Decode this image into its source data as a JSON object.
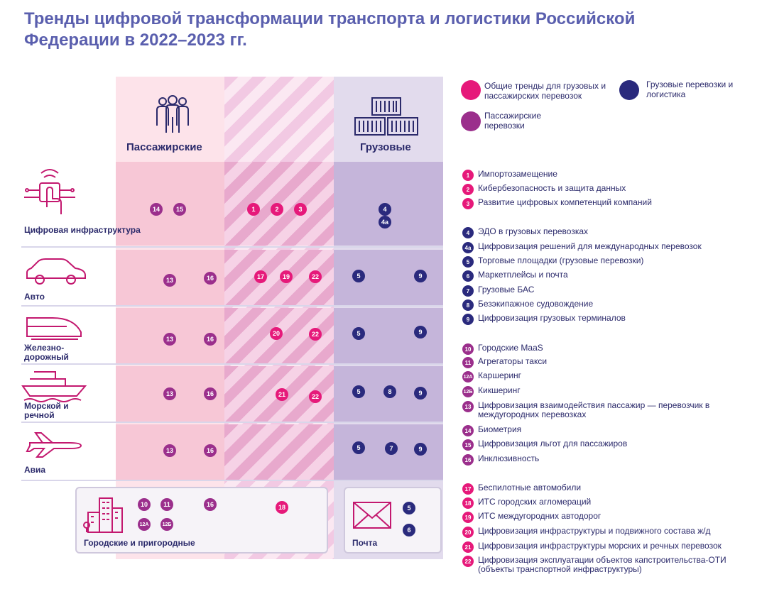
{
  "title": "Тренды цифровой трансформации транспорта и логистики Российской Федерации в 2022–2023 гг.",
  "columns": {
    "passenger": "Пассажирские",
    "freight": "Грузовые"
  },
  "legend_categories": [
    {
      "text": "Общие тренды для грузовых и пассажирских перевозок",
      "color": "#e6197a"
    },
    {
      "text": "Грузовые перевозки и логистика",
      "color": "#2a2a7d"
    },
    {
      "text": "Пассажирские перевозки",
      "color": "#9b2f8c"
    }
  ],
  "rows": [
    {
      "label": "Цифровая инфраструктура",
      "icon": "touch-hand-icon",
      "passenger": [
        "14",
        "15"
      ],
      "common": [
        "1",
        "2",
        "3"
      ],
      "freight": [
        "4",
        "4a"
      ]
    },
    {
      "label": "Авто",
      "icon": "car-icon",
      "passenger": [
        "13",
        "16"
      ],
      "common": [
        "17",
        "19",
        "22"
      ],
      "freight": [
        "5",
        "9"
      ]
    },
    {
      "label": "Железно-дорожный",
      "icon": "train-icon",
      "passenger": [
        "13",
        "16"
      ],
      "common": [
        "20",
        "22"
      ],
      "freight": [
        "5",
        "9"
      ]
    },
    {
      "label": "Морской и речной",
      "icon": "ship-icon",
      "passenger": [
        "13",
        "16"
      ],
      "common": [
        "21",
        "22"
      ],
      "freight": [
        "5",
        "8",
        "9"
      ]
    },
    {
      "label": "Авиа",
      "icon": "plane-icon",
      "passenger": [
        "13",
        "16"
      ],
      "common": [],
      "freight": [
        "5",
        "7",
        "9"
      ]
    }
  ],
  "urban": {
    "label": "Городские и пригородные",
    "badges": [
      "10",
      "11",
      "16",
      "12А",
      "12Б"
    ],
    "common": [
      "18"
    ]
  },
  "post": {
    "label": "Почта",
    "badges": [
      "5",
      "6"
    ]
  },
  "trends": [
    {
      "num": "1",
      "text": "Импортозамещение",
      "color": "#e6197a"
    },
    {
      "num": "2",
      "text": "Кибербезопасность и защита данных",
      "color": "#e6197a"
    },
    {
      "num": "3",
      "text": "Развитие цифровых компетенций компаний",
      "color": "#e6197a"
    },
    {
      "num": "4",
      "text": "ЭДО в грузовых перевозках",
      "color": "#2a2a7d"
    },
    {
      "num": "4a",
      "text": "Цифровизация решений для международных перевозок",
      "color": "#2a2a7d"
    },
    {
      "num": "5",
      "text": "Торговые площадки (грузовые перевозки)",
      "color": "#2a2a7d"
    },
    {
      "num": "6",
      "text": "Маркетплейсы и почта",
      "color": "#2a2a7d"
    },
    {
      "num": "7",
      "text": "Грузовые БАС",
      "color": "#2a2a7d"
    },
    {
      "num": "8",
      "text": "Безэкипажное судовождение",
      "color": "#2a2a7d"
    },
    {
      "num": "9",
      "text": "Цифровизация грузовых терминалов",
      "color": "#2a2a7d"
    },
    {
      "num": "10",
      "text": "Городские MaaS",
      "color": "#9b2f8c"
    },
    {
      "num": "11",
      "text": "Агрегаторы такси",
      "color": "#9b2f8c"
    },
    {
      "num": "12А",
      "text": "Каршеринг",
      "color": "#9b2f8c"
    },
    {
      "num": "12Б",
      "text": "Кикшеринг",
      "color": "#9b2f8c"
    },
    {
      "num": "13",
      "text": "Цифровизация взаимодействия пассажир — перевозчик в междугородних перевозках",
      "color": "#9b2f8c"
    },
    {
      "num": "14",
      "text": "Биометрия",
      "color": "#9b2f8c"
    },
    {
      "num": "15",
      "text": "Цифровизация льгот для пассажиров",
      "color": "#9b2f8c"
    },
    {
      "num": "16",
      "text": "Инклюзивность",
      "color": "#9b2f8c"
    },
    {
      "num": "17",
      "text": "Беспилотные автомобили",
      "color": "#e6197a"
    },
    {
      "num": "18",
      "text": "ИТС городских агломераций",
      "color": "#e6197a"
    },
    {
      "num": "19",
      "text": "ИТС междугородних автодорог",
      "color": "#e6197a"
    },
    {
      "num": "20",
      "text": "Цифровизация инфраструктуры и подвижного состава ж/д",
      "color": "#e6197a"
    },
    {
      "num": "21",
      "text": "Цифровизация инфраструктуры морских и речных перевозок",
      "color": "#e6197a"
    },
    {
      "num": "22",
      "text": "Цифровизация эксплуатации объектов капстроительства-ОТИ (объекты транспортной инфраструктуры)",
      "color": "#e6197a"
    }
  ]
}
